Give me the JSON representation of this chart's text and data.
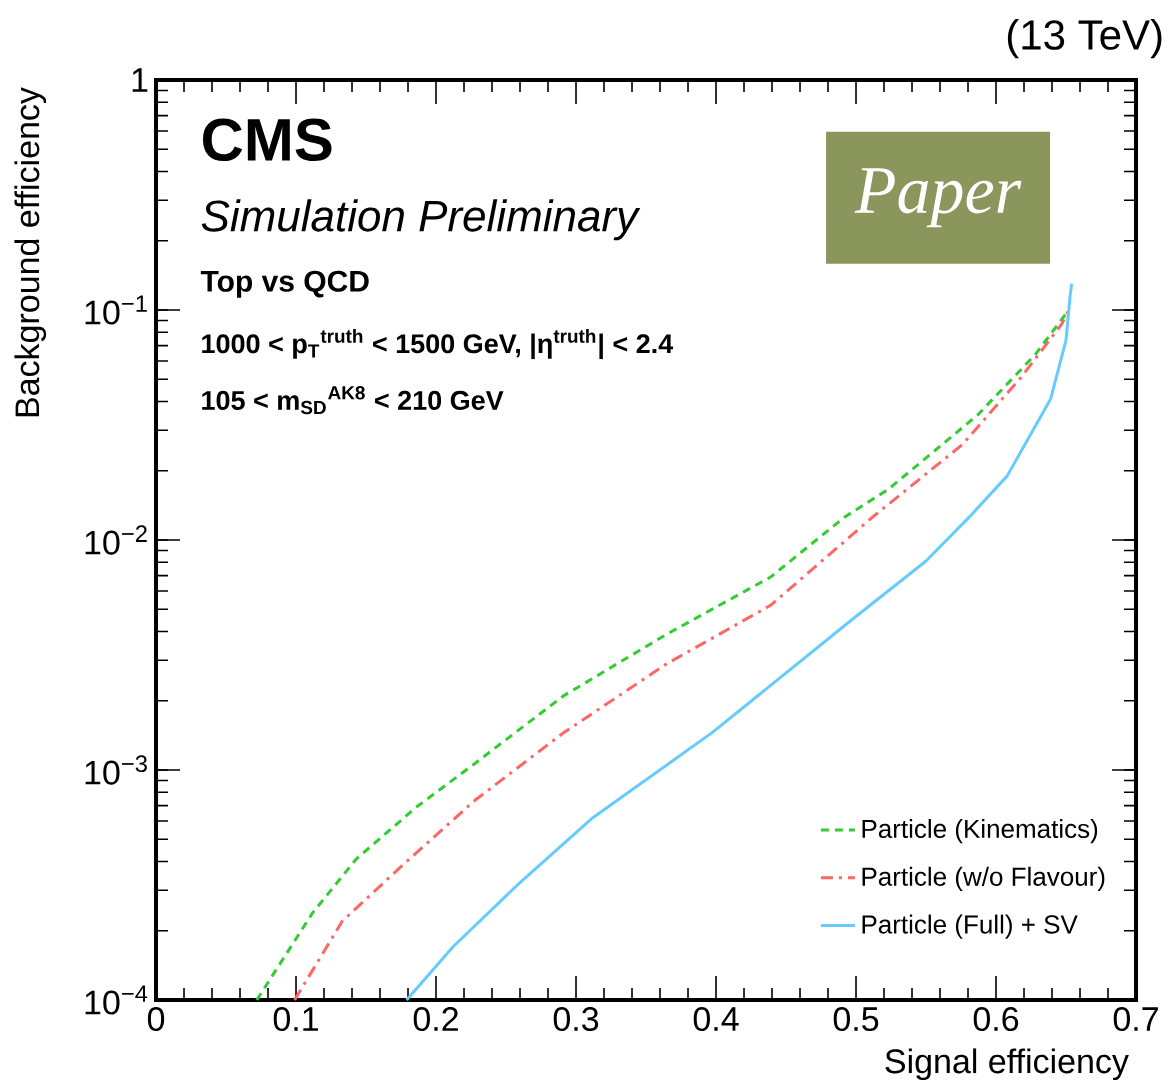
{
  "chart_data": {
    "type": "line",
    "xlabel": "Signal efficiency",
    "ylabel": "Background efficiency",
    "annotations": [
      "CMS",
      "Simulation Preliminary",
      "Top vs QCD",
      "1000 < p$_{T}$$^{truth}$ < 1500 GeV, |η$^{truth}$| < 2.4",
      "105 < m$_{SD}$$^{AK8}$ < 210 GeV",
      "(13 TeV)",
      "Paper"
    ],
    "xlim": [
      0,
      0.7
    ],
    "ylim": [
      0.0001,
      1
    ],
    "log": "y",
    "xticks": [
      0,
      0.1,
      0.2,
      0.3,
      0.4,
      0.5,
      0.6,
      0.7
    ],
    "yticks": [
      {
        "value": 0.0001,
        "label": "10$^{−4}$"
      },
      {
        "value": 0.001,
        "label": "10$^{−3}$"
      },
      {
        "value": 0.01,
        "label": "10$^{−2}$"
      },
      {
        "value": 0.1,
        "label": "10$^{−1}$"
      },
      1
    ],
    "grid": false,
    "legend": "bottom right",
    "series": [
      {
        "name": "Particle (Kinematics)",
        "color": "#33cc33",
        "line_style": "dashed",
        "x": [
          0.072,
          0.112,
          0.143,
          0.186,
          0.228,
          0.291,
          0.365,
          0.439,
          0.492,
          0.523,
          0.587,
          0.628,
          0.652
        ],
        "values": [
          0.0001,
          0.00024,
          0.00041,
          0.00069,
          0.00107,
          0.0021,
          0.0039,
          0.0069,
          0.0126,
          0.0166,
          0.035,
          0.064,
          0.1
        ]
      },
      {
        "name": "Particle (w/o Flavour)",
        "color": "#ff6666",
        "line_style": "dashdot",
        "x": [
          0.099,
          0.133,
          0.175,
          0.228,
          0.291,
          0.365,
          0.439,
          0.512,
          0.576,
          0.618,
          0.647,
          0.652
        ],
        "values": [
          0.0001,
          0.00022,
          0.00038,
          0.00074,
          0.00145,
          0.0029,
          0.0052,
          0.0126,
          0.026,
          0.051,
          0.087,
          0.1
        ]
      },
      {
        "name": "Particle (Full) + SV",
        "color": "#66ccff",
        "line_style": "solid",
        "x": [
          0.179,
          0.212,
          0.259,
          0.312,
          0.397,
          0.497,
          0.55,
          0.581,
          0.608,
          0.639,
          0.65,
          0.653,
          0.654
        ],
        "values": [
          0.0001,
          0.00017,
          0.00032,
          0.00062,
          0.00145,
          0.0045,
          0.0081,
          0.0126,
          0.019,
          0.041,
          0.074,
          0.116,
          0.13
        ]
      }
    ]
  }
}
